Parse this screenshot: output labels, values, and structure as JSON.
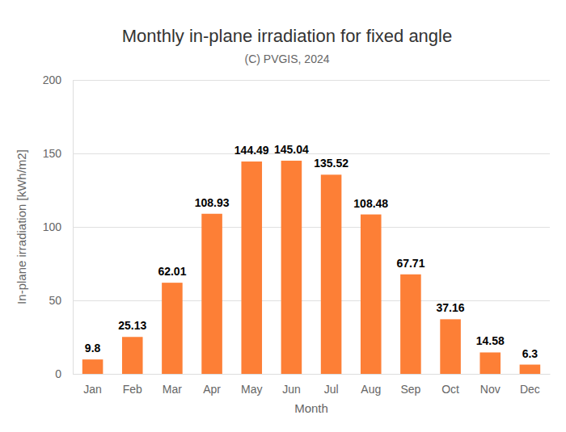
{
  "chart_data": {
    "type": "bar",
    "title": "Monthly in-plane irradiation for fixed angle",
    "subtitle": "(C) PVGIS, 2024",
    "x_label": "Month",
    "y_label": "In-plane irradiation [kWh/m2]",
    "categories": [
      "Jan",
      "Feb",
      "Mar",
      "Apr",
      "May",
      "Jun",
      "Jul",
      "Aug",
      "Sep",
      "Oct",
      "Nov",
      "Dec"
    ],
    "values": [
      9.8,
      25.13,
      62.01,
      108.93,
      144.49,
      145.04,
      135.52,
      108.48,
      67.71,
      37.16,
      14.58,
      6.3
    ],
    "color": "#fd7f36",
    "ylim": [
      0,
      200
    ],
    "yticks": [
      0,
      50,
      100,
      150,
      200
    ],
    "grid": true,
    "data_labels": true
  }
}
